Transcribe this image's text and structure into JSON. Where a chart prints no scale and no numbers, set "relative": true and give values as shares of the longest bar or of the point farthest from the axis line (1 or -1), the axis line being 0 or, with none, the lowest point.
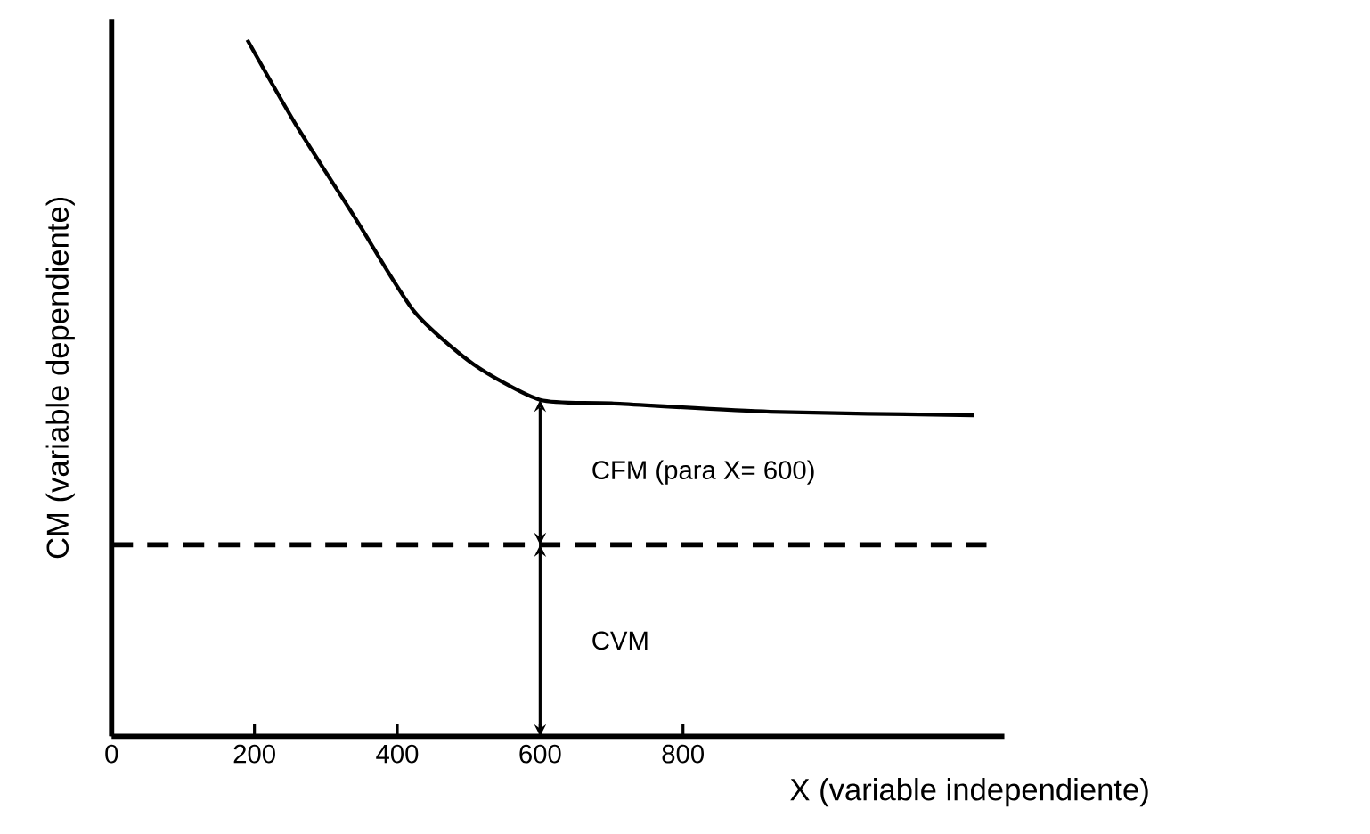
{
  "chart_data": {
    "type": "line",
    "relative": true,
    "xlabel": "X (variable independiente)",
    "ylabel": "CM (variable dependiente)",
    "xlim": [
      0,
      1250
    ],
    "xticks": [
      0,
      200,
      400,
      600,
      800
    ],
    "tick_labels": "x",
    "marker": "none",
    "line_style": "solid",
    "series": [
      {
        "color": "#000000",
        "x": [
          190,
          257,
          340,
          423,
          507,
          600,
          700,
          922,
          1207
        ],
        "values": [
          1.0,
          0.88,
          0.746,
          0.611,
          0.534,
          0.483,
          0.478,
          0.466,
          0.461
        ]
      }
    ],
    "ref_lines": [
      {
        "axis": "y",
        "value": 0.275,
        "line_style": "dashed",
        "color": "#000000"
      }
    ],
    "annotations": [
      "CFM (para X= 600)",
      "CVM"
    ]
  }
}
